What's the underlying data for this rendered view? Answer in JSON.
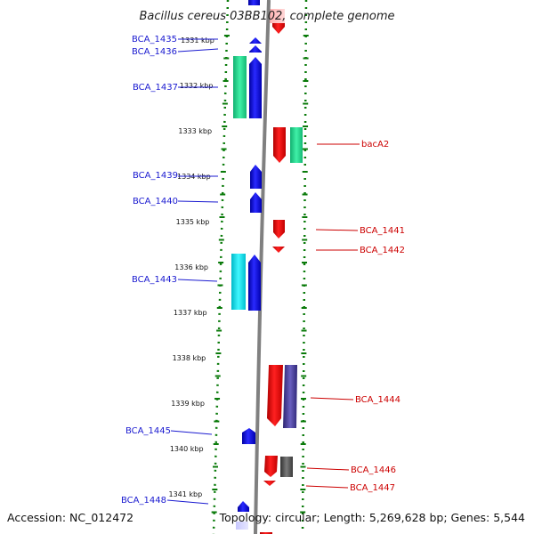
{
  "title": "Bacillus cereus 03BB102, complete genome",
  "accession": "Accession: NC_012472",
  "topology": "Topology: circular; Length: 5,269,628 bp; Genes: 5,544",
  "colors": {
    "forward": "#1010e0",
    "reverse": "#ee0000",
    "green": "#22e090",
    "cyan": "#00e8f0",
    "slate": "#4a3fa0",
    "gray": "#555555",
    "ruler": "#0a7a0a",
    "backbone": "#808080",
    "label_left": "#1a1ad0",
    "label_right": "#cc0000"
  },
  "ticks": [
    {
      "label": "1331 kbp"
    },
    {
      "label": "1332 kbp"
    },
    {
      "label": "1333 kbp"
    },
    {
      "label": "1334 kbp"
    },
    {
      "label": "1335 kbp"
    },
    {
      "label": "1336 kbp"
    },
    {
      "label": "1337 kbp"
    },
    {
      "label": "1338 kbp"
    },
    {
      "label": "1339 kbp"
    },
    {
      "label": "1340 kbp"
    },
    {
      "label": "1341 kbp"
    }
  ],
  "genes_left": [
    {
      "label": "BCA_1435"
    },
    {
      "label": "BCA_1436"
    },
    {
      "label": "BCA_1437"
    },
    {
      "label": "BCA_1439"
    },
    {
      "label": "BCA_1440"
    },
    {
      "label": "BCA_1443"
    },
    {
      "label": "BCA_1445"
    },
    {
      "label": "BCA_1448"
    }
  ],
  "genes_right": [
    {
      "label": "bacA2"
    },
    {
      "label": "BCA_1441"
    },
    {
      "label": "BCA_1442"
    },
    {
      "label": "BCA_1444"
    },
    {
      "label": "BCA_1446"
    },
    {
      "label": "BCA_1447"
    }
  ]
}
